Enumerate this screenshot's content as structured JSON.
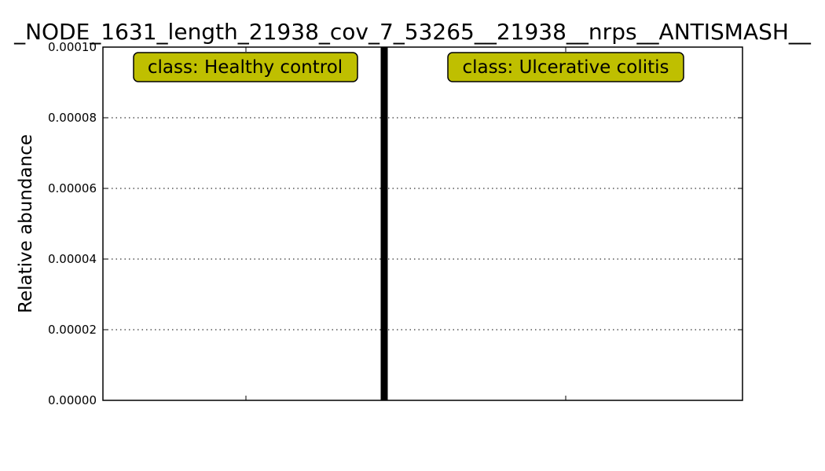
{
  "chart_data": {
    "type": "bar",
    "title": "_NODE_1631_length_21938_cov_7_53265__21938__nrps__ANTISMASH__",
    "xlabel": "",
    "ylabel": "Relative abundance",
    "ylim": [
      0,
      0.0001
    ],
    "yticks": [
      "0.00000",
      "0.00002",
      "0.00004",
      "0.00006",
      "0.00008",
      "0.00010"
    ],
    "ytick_values": [
      0,
      2e-05,
      4e-05,
      6e-05,
      8e-05,
      0.0001
    ],
    "grid": "y-dotted",
    "classes": [
      {
        "label": "class: Healthy control",
        "samples": 0
      },
      {
        "label": "class: Ulcerative colitis",
        "samples": 0
      }
    ],
    "series": [],
    "colors": {
      "class_box": "#bfbf00",
      "separator": "#000000",
      "axes": "#000000"
    }
  }
}
